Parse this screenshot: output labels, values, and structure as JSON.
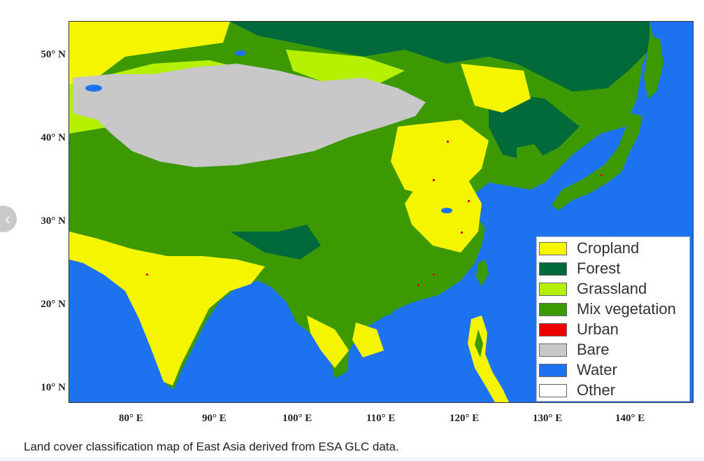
{
  "map": {
    "latitude_labels": [
      "50° N",
      "40° N",
      "30° N",
      "20° N",
      "10° N"
    ],
    "longitude_labels": [
      "80° E",
      "90° E",
      "100° E",
      "110° E",
      "120° E",
      "130° E",
      "140° E"
    ],
    "legend": [
      {
        "label": "Cropland",
        "color": "#f5f500"
      },
      {
        "label": "Forest",
        "color": "#006a3a"
      },
      {
        "label": "Grassland",
        "color": "#b4f000"
      },
      {
        "label": "Mix vegetation",
        "color": "#3c9a00"
      },
      {
        "label": "Urban",
        "color": "#ee0000"
      },
      {
        "label": "Bare",
        "color": "#c8c8c8"
      },
      {
        "label": "Water",
        "color": "#1d72f0"
      },
      {
        "label": "Other",
        "color": "#ffffff"
      }
    ]
  },
  "caption": "Land cover classification map of East Asia derived from ESA GLC data.",
  "nav": {
    "prev_icon": "chevron-left-icon",
    "prev_glyph": "‹"
  }
}
